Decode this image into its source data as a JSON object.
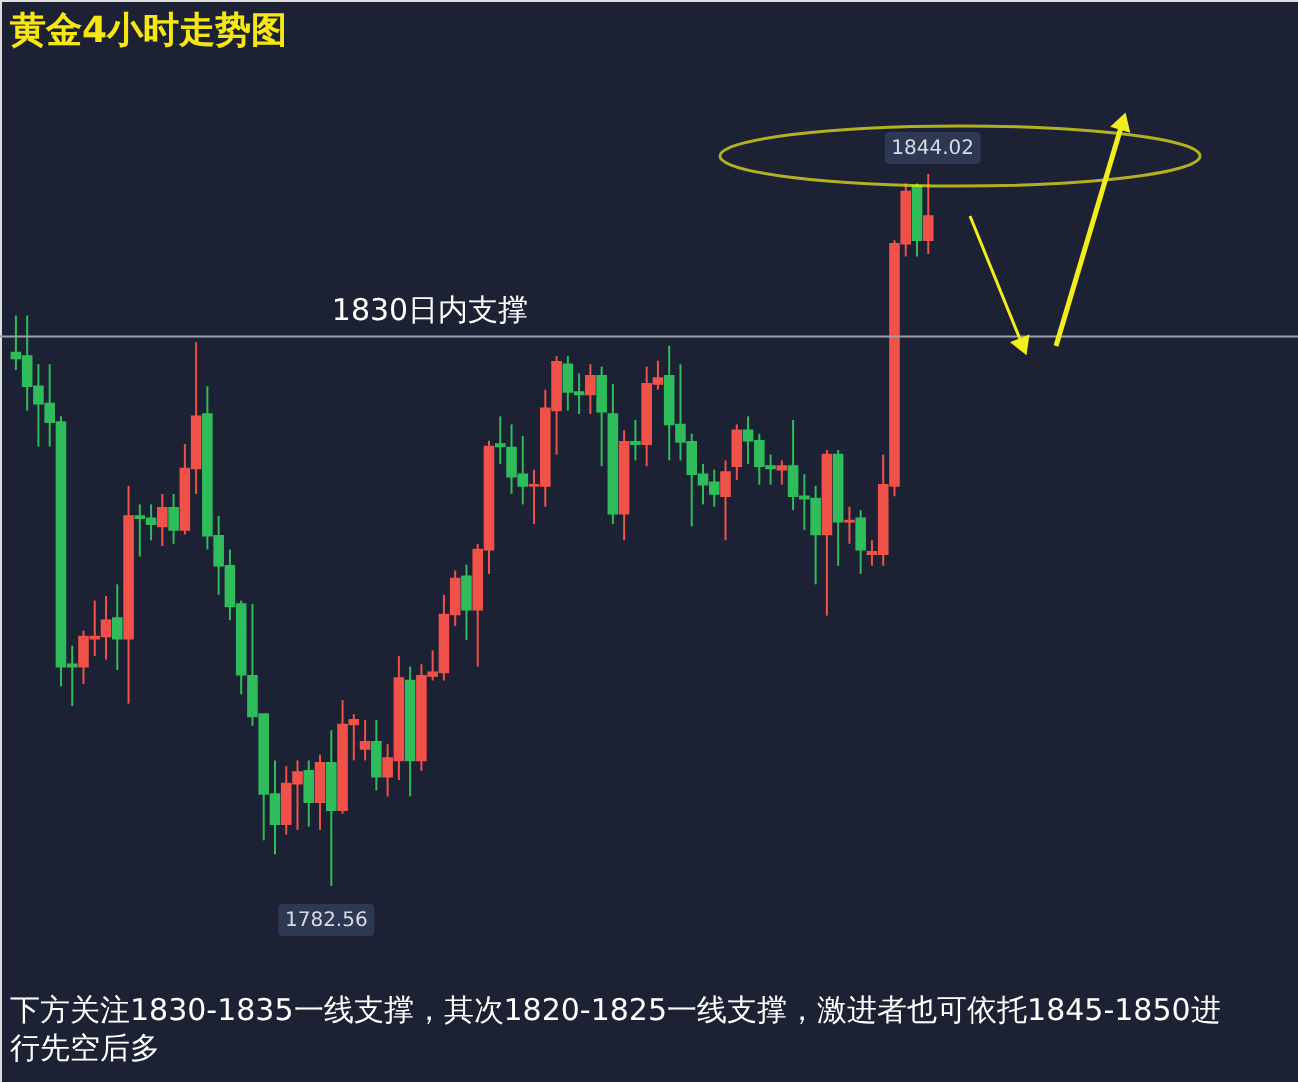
{
  "chart_data": {
    "type": "candlestick",
    "title": "黄金4小时走势图",
    "categories": [
      null,
      null,
      null,
      null,
      null,
      null,
      null,
      null,
      null,
      null,
      null,
      null,
      null,
      null,
      null,
      null,
      null,
      null,
      null,
      null,
      null,
      null,
      null,
      null,
      null,
      null,
      null,
      null,
      null,
      null,
      null,
      null,
      null,
      null,
      null,
      null,
      null,
      null,
      null,
      null,
      null,
      null,
      null,
      null,
      null,
      null,
      null,
      null,
      null,
      null,
      null,
      null,
      null,
      null,
      null,
      null,
      null,
      null,
      null,
      null,
      null,
      null,
      null,
      null,
      null,
      null,
      null,
      null,
      null,
      null,
      null,
      null,
      null,
      null,
      null,
      null,
      null,
      null,
      null,
      null,
      null,
      null
    ],
    "ohlc": [
      [
        1828.6,
        1831.8,
        1827.1,
        1828.1
      ],
      [
        1828.3,
        1831.8,
        1823.6,
        1825.7
      ],
      [
        1825.7,
        1827.6,
        1820.5,
        1824.2
      ],
      [
        1824.2,
        1827.6,
        1820.5,
        1822.6
      ],
      [
        1822.6,
        1823.1,
        1799.8,
        1801.5
      ],
      [
        1801.7,
        1803.3,
        1798.1,
        1801.5
      ],
      [
        1801.5,
        1804.6,
        1800.0,
        1804.1
      ],
      [
        1803.9,
        1807.2,
        1802.4,
        1804.1
      ],
      [
        1804.1,
        1807.6,
        1802.1,
        1805.5
      ],
      [
        1805.7,
        1808.6,
        1801.2,
        1803.9
      ],
      [
        1803.9,
        1817.1,
        1798.3,
        1814.5
      ],
      [
        1814.5,
        1815.5,
        1811.0,
        1814.3
      ],
      [
        1814.3,
        1815.5,
        1812.4,
        1813.8
      ],
      [
        1813.6,
        1816.4,
        1811.9,
        1815.2
      ],
      [
        1815.2,
        1816.4,
        1812.1,
        1813.3
      ],
      [
        1813.3,
        1820.7,
        1812.9,
        1818.6
      ],
      [
        1818.6,
        1829.5,
        1816.4,
        1823.1
      ],
      [
        1823.3,
        1825.7,
        1811.6,
        1812.8
      ],
      [
        1812.8,
        1814.5,
        1807.7,
        1810.2
      ],
      [
        1810.2,
        1811.6,
        1805.5,
        1806.7
      ],
      [
        1806.9,
        1807.2,
        1799.1,
        1800.8
      ],
      [
        1800.7,
        1806.9,
        1796.4,
        1797.2
      ],
      [
        1797.4,
        1797.4,
        1786.5,
        1790.5
      ],
      [
        1790.5,
        1793.4,
        1785.3,
        1787.9
      ],
      [
        1787.9,
        1792.9,
        1787.0,
        1791.4
      ],
      [
        1791.4,
        1793.4,
        1787.4,
        1792.4
      ],
      [
        1792.5,
        1793.4,
        1787.7,
        1789.8
      ],
      [
        1789.8,
        1793.9,
        1787.4,
        1793.2
      ],
      [
        1793.2,
        1796.0,
        1782.56,
        1789.1
      ],
      [
        1789.1,
        1798.6,
        1788.8,
        1796.5
      ],
      [
        1796.5,
        1797.4,
        1793.4,
        1796.9
      ],
      [
        1794.4,
        1796.9,
        1793.4,
        1795.0
      ],
      [
        1795.0,
        1796.9,
        1790.8,
        1792.0
      ],
      [
        1792.0,
        1794.8,
        1790.3,
        1793.6
      ],
      [
        1793.4,
        1802.4,
        1791.7,
        1800.5
      ],
      [
        1800.3,
        1801.5,
        1790.3,
        1793.4
      ],
      [
        1793.4,
        1801.7,
        1792.5,
        1800.7
      ],
      [
        1800.7,
        1802.9,
        1800.3,
        1801.0
      ],
      [
        1801.0,
        1807.7,
        1800.3,
        1806.0
      ],
      [
        1806.0,
        1809.8,
        1805.0,
        1809.1
      ],
      [
        1809.3,
        1810.3,
        1803.8,
        1806.4
      ],
      [
        1806.4,
        1812.1,
        1801.5,
        1811.6
      ],
      [
        1811.6,
        1821.0,
        1809.5,
        1820.5
      ],
      [
        1820.7,
        1823.1,
        1819.0,
        1820.5
      ],
      [
        1820.4,
        1822.4,
        1816.4,
        1817.9
      ],
      [
        1818.1,
        1821.4,
        1815.5,
        1817.1
      ],
      [
        1817.1,
        1818.5,
        1813.8,
        1817.2
      ],
      [
        1817.1,
        1825.4,
        1815.3,
        1823.8
      ],
      [
        1823.6,
        1828.3,
        1819.8,
        1827.8
      ],
      [
        1827.6,
        1828.3,
        1823.6,
        1825.2
      ],
      [
        1825.2,
        1826.8,
        1823.3,
        1825.0
      ],
      [
        1825.0,
        1827.6,
        1823.3,
        1826.6
      ],
      [
        1826.6,
        1827.4,
        1818.8,
        1823.5
      ],
      [
        1823.3,
        1825.9,
        1813.8,
        1814.7
      ],
      [
        1814.7,
        1821.9,
        1812.4,
        1820.9
      ],
      [
        1820.9,
        1822.8,
        1819.3,
        1820.7
      ],
      [
        1820.7,
        1827.4,
        1818.8,
        1825.9
      ],
      [
        1825.9,
        1827.9,
        1825.4,
        1826.4
      ],
      [
        1826.6,
        1829.2,
        1819.3,
        1822.4
      ],
      [
        1822.4,
        1827.6,
        1819.3,
        1820.9
      ],
      [
        1820.9,
        1821.6,
        1813.6,
        1818.1
      ],
      [
        1818.1,
        1819.0,
        1815.5,
        1817.2
      ],
      [
        1817.4,
        1818.5,
        1815.3,
        1816.4
      ],
      [
        1816.2,
        1819.3,
        1812.4,
        1818.3
      ],
      [
        1818.8,
        1822.4,
        1817.6,
        1821.9
      ],
      [
        1821.9,
        1823.1,
        1819.0,
        1821.0
      ],
      [
        1821.0,
        1821.6,
        1817.2,
        1818.8
      ],
      [
        1818.8,
        1819.8,
        1817.2,
        1818.6
      ],
      [
        1818.5,
        1819.3,
        1817.2,
        1818.8
      ],
      [
        1818.8,
        1822.8,
        1815.0,
        1816.2
      ],
      [
        1816.2,
        1818.1,
        1813.3,
        1816.0
      ],
      [
        1816.0,
        1817.1,
        1808.6,
        1812.9
      ],
      [
        1812.9,
        1820.2,
        1805.9,
        1819.8
      ],
      [
        1819.8,
        1820.2,
        1810.2,
        1814.0
      ],
      [
        1814.0,
        1815.3,
        1812.1,
        1814.1
      ],
      [
        1814.3,
        1815.0,
        1809.5,
        1811.6
      ],
      [
        1811.2,
        1812.4,
        1810.2,
        1811.4
      ],
      [
        1811.2,
        1819.8,
        1810.2,
        1817.2
      ],
      [
        1817.1,
        1838.3,
        1816.2,
        1838.0
      ],
      [
        1838.0,
        1843.2,
        1836.9,
        1842.5
      ],
      [
        1843.0,
        1843.2,
        1836.9,
        1838.3
      ],
      [
        1838.3,
        1844.02,
        1837.1,
        1840.4
      ]
    ],
    "colors": [
      "#2ebd5a",
      "#2ebd5a",
      "#2ebd5a",
      "#2ebd5a",
      "#2ebd5a",
      "#2ebd5a",
      "#f0524a",
      "#f0524a",
      "#f0524a",
      "#2ebd5a",
      "#f0524a",
      "#2ebd5a",
      "#2ebd5a",
      "#f0524a",
      "#2ebd5a",
      "#f0524a",
      "#f0524a",
      "#2ebd5a",
      "#2ebd5a",
      "#2ebd5a",
      "#2ebd5a",
      "#2ebd5a",
      "#2ebd5a",
      "#2ebd5a",
      "#f0524a",
      "#f0524a",
      "#2ebd5a",
      "#f0524a",
      "#2ebd5a",
      "#f0524a",
      "#f0524a",
      "#f0524a",
      "#2ebd5a",
      "#f0524a",
      "#f0524a",
      "#2ebd5a",
      "#f0524a",
      "#f0524a",
      "#f0524a",
      "#f0524a",
      "#2ebd5a",
      "#f0524a",
      "#f0524a",
      "#2ebd5a",
      "#2ebd5a",
      "#2ebd5a",
      "#f0524a",
      "#f0524a",
      "#f0524a",
      "#2ebd5a",
      "#2ebd5a",
      "#f0524a",
      "#2ebd5a",
      "#2ebd5a",
      "#f0524a",
      "#2ebd5a",
      "#f0524a",
      "#f0524a",
      "#2ebd5a",
      "#2ebd5a",
      "#2ebd5a",
      "#2ebd5a",
      "#2ebd5a",
      "#f0524a",
      "#f0524a",
      "#2ebd5a",
      "#2ebd5a",
      "#2ebd5a",
      "#f0524a",
      "#2ebd5a",
      "#2ebd5a",
      "#2ebd5a",
      "#f0524a",
      "#2ebd5a",
      "#f0524a",
      "#2ebd5a",
      "#f0524a",
      "#f0524a",
      "#f0524a",
      "#f0524a",
      "#2ebd5a",
      "#f0524a"
    ],
    "ref_lines": [
      {
        "axis": "y",
        "value": 1830,
        "label": "1830日内支撑",
        "color": "#9ca0a8"
      }
    ],
    "annotations": [
      {
        "text": "1844.02",
        "y": 1844.02
      },
      {
        "text": "1782.56",
        "y": 1782.56
      },
      "下方关注1830-1835一线支撑，其次1820-1825一线支撑，激进者也可依托1845-1850进行先空后多"
    ]
  }
}
